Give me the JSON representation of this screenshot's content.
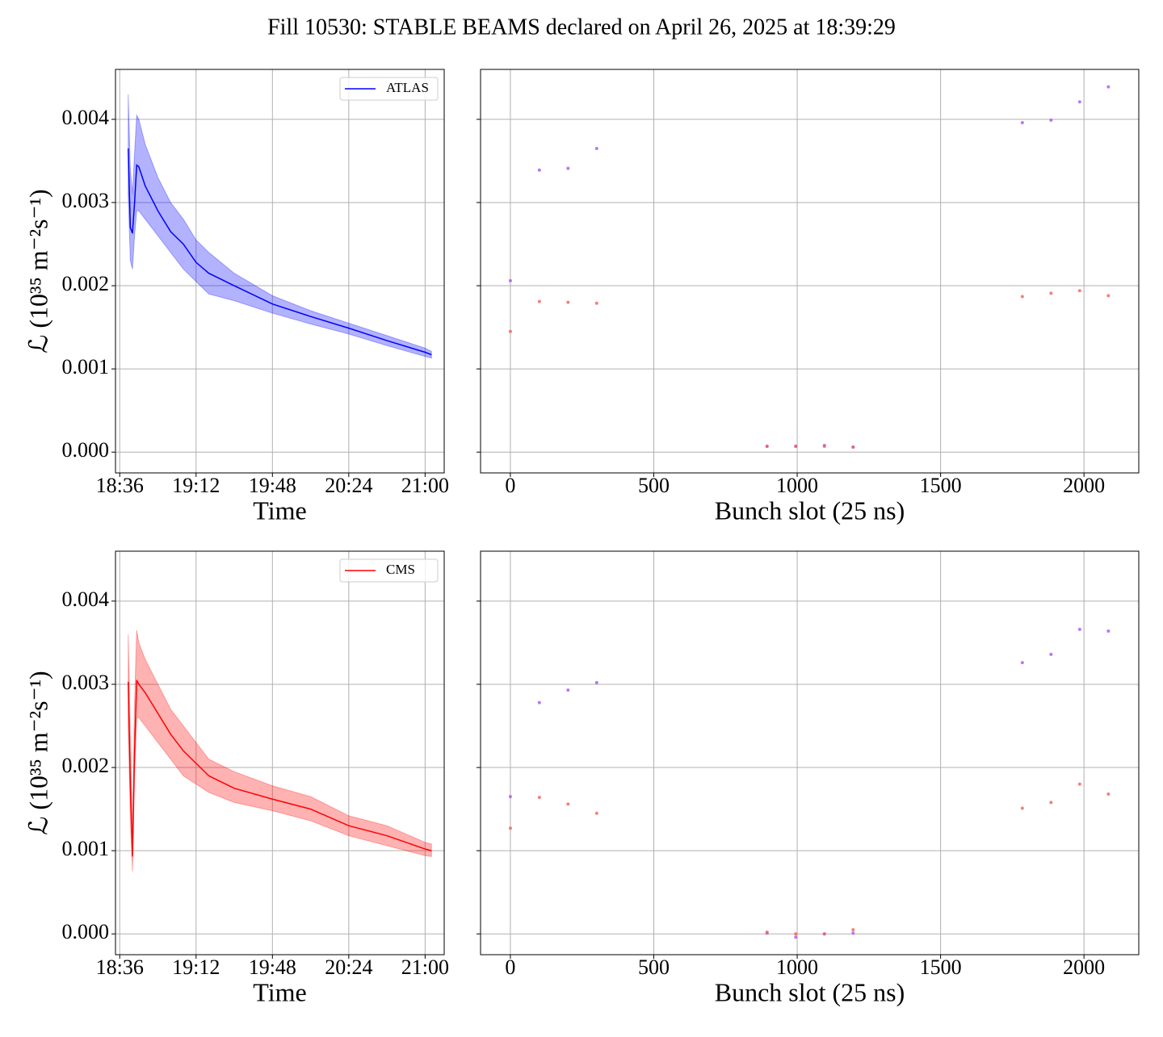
{
  "title": "Fill 10530: STABLE BEAMS declared on April 26, 2025 at 18:39:29",
  "chart_data": [
    {
      "type": "line",
      "xlabel": "Time",
      "ylabel": "ℒ (10³⁵ m⁻²s⁻¹)",
      "x": [
        "18:40",
        "18:41",
        "18:42",
        "18:43",
        "18:44",
        "18:45",
        "18:48",
        "18:54",
        "19:00",
        "19:06",
        "19:12",
        "19:18",
        "19:30",
        "19:48",
        "20:06",
        "20:24",
        "20:42",
        "21:00",
        "21:03"
      ],
      "series": [
        {
          "name": "ATLAS",
          "color": "#0000ff",
          "values": [
            0.00365,
            0.0027,
            0.00263,
            0.003,
            0.00345,
            0.00343,
            0.0032,
            0.0029,
            0.00265,
            0.0025,
            0.00228,
            0.00215,
            0.002,
            0.00178,
            0.00163,
            0.00149,
            0.00134,
            0.0012,
            0.00117
          ],
          "band_upper": [
            0.0043,
            0.0034,
            0.0031,
            0.0036,
            0.00405,
            0.004,
            0.0037,
            0.0033,
            0.003,
            0.0028,
            0.00255,
            0.0024,
            0.00215,
            0.00188,
            0.0017,
            0.00155,
            0.0014,
            0.00125,
            0.00121
          ],
          "band_lower": [
            0.0031,
            0.0023,
            0.0022,
            0.0026,
            0.0029,
            0.0029,
            0.0028,
            0.0026,
            0.0024,
            0.0022,
            0.00205,
            0.0019,
            0.00182,
            0.00167,
            0.00154,
            0.00142,
            0.00128,
            0.00115,
            0.00113
          ]
        }
      ],
      "xlim": [
        "18:34",
        "21:09"
      ],
      "xticks": [
        "18:36",
        "19:12",
        "19:48",
        "20:24",
        "21:00"
      ],
      "ylim": [
        -0.00025,
        0.0046
      ],
      "yticks": [
        {
          "value": 0,
          "label": "0.000"
        },
        {
          "value": 0.001,
          "label": "0.001"
        },
        {
          "value": 0.002,
          "label": "0.002"
        },
        {
          "value": 0.003,
          "label": "0.003"
        },
        {
          "value": 0.004,
          "label": "0.004"
        }
      ],
      "grid": true,
      "legend": "upper right",
      "show_ytick_labels": true
    },
    {
      "type": "scatter",
      "xlabel": "Bunch slot (25 ns)",
      "x": [
        0,
        101,
        201,
        301,
        895,
        995,
        1095,
        1195,
        1785,
        1885,
        1985,
        2085
      ],
      "series": [
        {
          "color": "#a855f7",
          "values": [
            0.00206,
            0.00339,
            0.00341,
            0.00365,
            7e-05,
            7e-05,
            8e-05,
            6e-05,
            0.00396,
            0.00399,
            0.00421,
            0.00439
          ]
        },
        {
          "color": "#f0605a",
          "values": [
            0.00145,
            0.00181,
            0.0018,
            0.00179,
            7e-05,
            7e-05,
            7e-05,
            6e-05,
            0.00187,
            0.00191,
            0.00194,
            0.00188
          ]
        }
      ],
      "xlim": [
        -104,
        2191
      ],
      "xticks": [
        0,
        500,
        1000,
        1500,
        2000
      ],
      "ylim": [
        -0.00025,
        0.0046
      ],
      "yticks": [
        0,
        0.001,
        0.002,
        0.003,
        0.004
      ],
      "grid": true,
      "show_ytick_labels": false
    },
    {
      "type": "line",
      "xlabel": "Time",
      "ylabel": "ℒ (10³⁵ m⁻²s⁻¹)",
      "x": [
        "18:40",
        "18:41",
        "18:42",
        "18:43",
        "18:44",
        "18:45",
        "18:48",
        "18:54",
        "19:00",
        "19:06",
        "19:12",
        "19:18",
        "19:30",
        "19:48",
        "20:06",
        "20:24",
        "20:42",
        "21:00",
        "21:03"
      ],
      "series": [
        {
          "name": "CMS",
          "color": "#ff0000",
          "values": [
            0.00303,
            0.0018,
            0.00093,
            0.0022,
            0.00305,
            0.003,
            0.0029,
            0.00265,
            0.0024,
            0.0022,
            0.00205,
            0.0019,
            0.00175,
            0.00162,
            0.0015,
            0.0013,
            0.00118,
            0.00102,
            0.001
          ],
          "band_upper": [
            0.0036,
            0.0024,
            0.0012,
            0.0028,
            0.00365,
            0.0035,
            0.0033,
            0.003,
            0.0027,
            0.0025,
            0.0023,
            0.0021,
            0.00195,
            0.00178,
            0.00165,
            0.00142,
            0.0013,
            0.0011,
            0.00108
          ],
          "band_lower": [
            0.0025,
            0.0014,
            0.00075,
            0.0019,
            0.0026,
            0.0026,
            0.0025,
            0.0023,
            0.0021,
            0.0019,
            0.0018,
            0.0017,
            0.00158,
            0.00148,
            0.00136,
            0.00118,
            0.00106,
            0.00094,
            0.00093
          ]
        }
      ],
      "xlim": [
        "18:34",
        "21:09"
      ],
      "xticks": [
        "18:36",
        "19:12",
        "19:48",
        "20:24",
        "21:00"
      ],
      "ylim": [
        -0.00025,
        0.0046
      ],
      "yticks": [
        {
          "value": 0,
          "label": "0.000"
        },
        {
          "value": 0.001,
          "label": "0.001"
        },
        {
          "value": 0.002,
          "label": "0.002"
        },
        {
          "value": 0.003,
          "label": "0.003"
        },
        {
          "value": 0.004,
          "label": "0.004"
        }
      ],
      "grid": true,
      "legend": "upper right",
      "show_ytick_labels": true
    },
    {
      "type": "scatter",
      "xlabel": "Bunch slot (25 ns)",
      "x": [
        0,
        101,
        201,
        301,
        895,
        995,
        1095,
        1195,
        1785,
        1885,
        1985,
        2085
      ],
      "series": [
        {
          "color": "#a855f7",
          "values": [
            0.00165,
            0.00278,
            0.00293,
            0.00302,
            1e-05,
            -4e-05,
            0,
            1e-05,
            0.00326,
            0.00336,
            0.00366,
            0.00364
          ]
        },
        {
          "color": "#f0605a",
          "values": [
            0.00127,
            0.00164,
            0.00156,
            0.00145,
            2e-05,
            0,
            0,
            5e-05,
            0.00151,
            0.00158,
            0.0018,
            0.00168
          ]
        }
      ],
      "xlim": [
        -104,
        2191
      ],
      "xticks": [
        0,
        500,
        1000,
        1500,
        2000
      ],
      "ylim": [
        -0.00025,
        0.0046
      ],
      "yticks": [
        0,
        0.001,
        0.002,
        0.003,
        0.004
      ],
      "grid": true,
      "show_ytick_labels": false
    }
  ]
}
